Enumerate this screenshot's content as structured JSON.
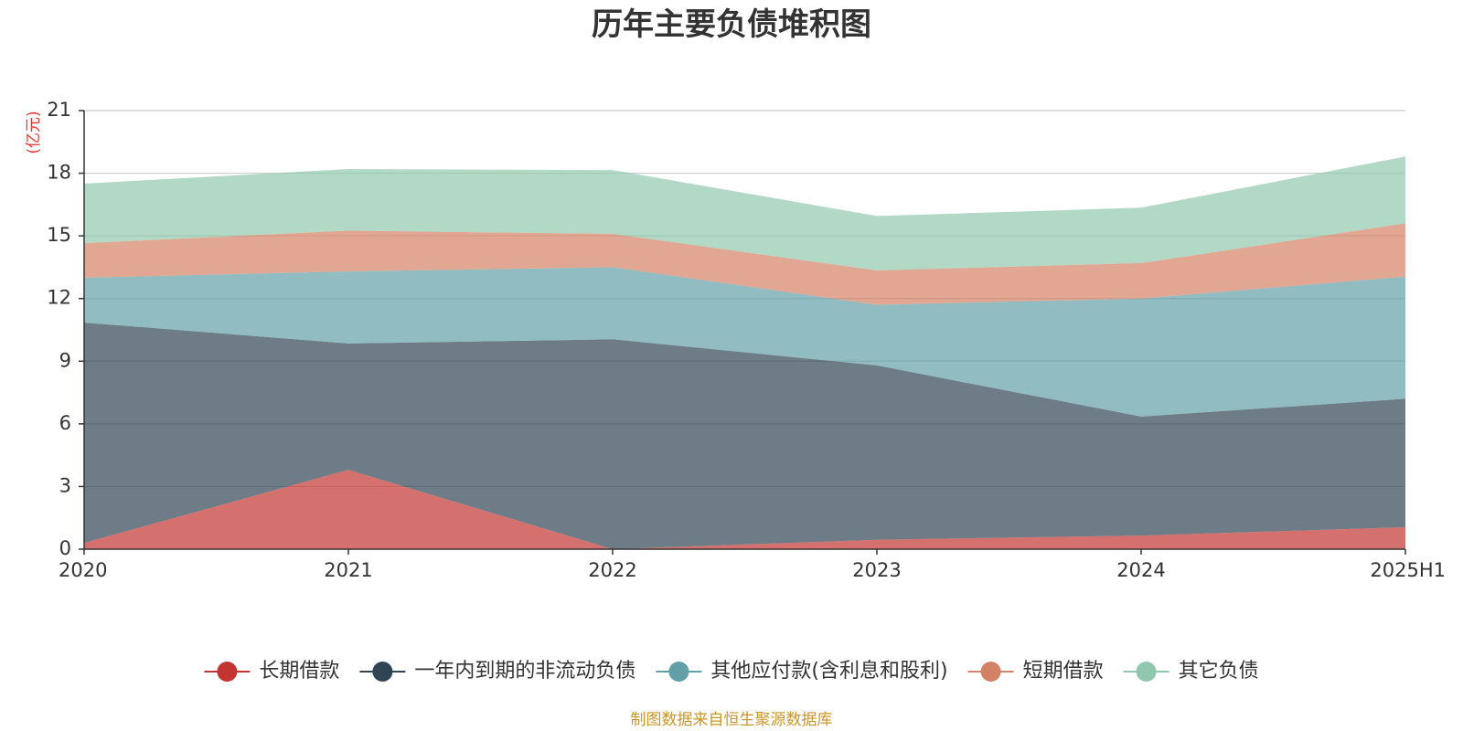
{
  "chart_data": {
    "type": "area",
    "stacked": true,
    "title": "历年主要负债堆积图",
    "unit_label": "(亿元)",
    "source_note": "制图数据来自恒生聚源数据库",
    "categories": [
      "2020",
      "2021",
      "2022",
      "2023",
      "2024",
      "2025H1"
    ],
    "ylim": [
      0,
      21
    ],
    "yticks": [
      0,
      3,
      6,
      9,
      12,
      15,
      18,
      21
    ],
    "grid": true,
    "legend_position": "bottom",
    "series": [
      {
        "name": "长期借款",
        "color": "#c23531",
        "values": [
          0.3,
          3.8,
          0.0,
          0.45,
          0.65,
          1.05
        ]
      },
      {
        "name": "一年内到期的非流动负债",
        "color": "#2f4554",
        "values": [
          10.55,
          6.05,
          10.05,
          8.35,
          5.7,
          6.15
        ]
      },
      {
        "name": "其他应付款(含利息和股利)",
        "color": "#61a0a8",
        "values": [
          2.15,
          3.45,
          3.45,
          2.9,
          5.65,
          5.85
        ]
      },
      {
        "name": "短期借款",
        "color": "#d48265",
        "values": [
          1.65,
          1.95,
          1.6,
          1.65,
          1.7,
          2.55
        ]
      },
      {
        "name": "其它负债",
        "color": "#91c7ae",
        "values": [
          2.85,
          2.95,
          3.05,
          2.6,
          2.65,
          3.2
        ]
      }
    ]
  }
}
